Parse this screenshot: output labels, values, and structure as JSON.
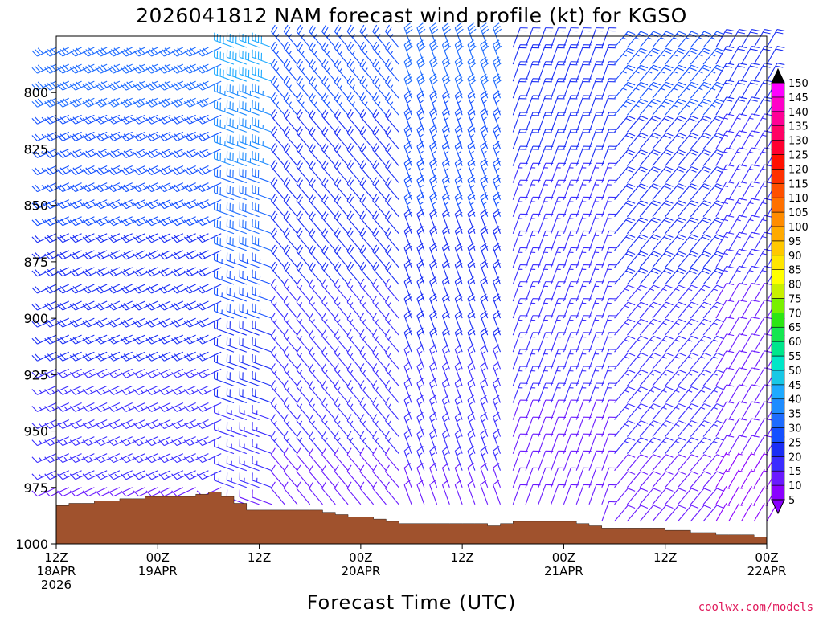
{
  "title": "2026041812 NAM forecast wind profile (kt) for KGSO",
  "xlabel": "Forecast Time (UTC)",
  "credit": "coolwx.com/models",
  "colors": {
    "ground": "#a0522d",
    "background": "#ffffff"
  },
  "chart_data": {
    "type": "wind_barbs",
    "units": "kt",
    "ylabel": "",
    "y_axis": {
      "ticks": [
        800,
        825,
        850,
        875,
        900,
        925,
        950,
        975,
        1000
      ],
      "range": [
        775,
        1000
      ],
      "inverted": true
    },
    "x_axis": {
      "range_hours": [
        0,
        84
      ],
      "ticks": [
        {
          "hour": 0,
          "lines": [
            "12Z",
            "18APR",
            "2026"
          ]
        },
        {
          "hour": 12,
          "lines": [
            "00Z",
            "19APR"
          ]
        },
        {
          "hour": 24,
          "lines": [
            "12Z"
          ]
        },
        {
          "hour": 36,
          "lines": [
            "00Z",
            "20APR"
          ]
        },
        {
          "hour": 48,
          "lines": [
            "12Z"
          ]
        },
        {
          "hour": 60,
          "lines": [
            "00Z",
            "21APR"
          ]
        },
        {
          "hour": 72,
          "lines": [
            "12Z"
          ]
        },
        {
          "hour": 84,
          "lines": [
            "00Z",
            "22APR"
          ]
        }
      ]
    },
    "colorbar": {
      "labels": [
        5,
        10,
        15,
        20,
        25,
        30,
        35,
        40,
        45,
        50,
        55,
        60,
        65,
        70,
        75,
        80,
        85,
        90,
        95,
        100,
        105,
        110,
        115,
        120,
        125,
        130,
        135,
        140,
        145,
        150
      ],
      "colors": [
        "#8a00ff",
        "#6a1aff",
        "#3a2cff",
        "#1a2ef5",
        "#1450ff",
        "#1e6cff",
        "#1e8cff",
        "#1eaaff",
        "#18c8e6",
        "#00e6c8",
        "#00e68c",
        "#14e650",
        "#2ce614",
        "#78f000",
        "#c8f000",
        "#ffff00",
        "#ffe600",
        "#ffc800",
        "#ffaa00",
        "#ff8c00",
        "#ff7000",
        "#ff5000",
        "#ff3000",
        "#ff1000",
        "#ff0030",
        "#ff0064",
        "#ff0096",
        "#ff00c8",
        "#ff00ff"
      ]
    },
    "surface_pressure": {
      "hours": [
        0,
        1.5,
        3,
        4.5,
        6,
        7.5,
        9,
        10.5,
        12,
        13.5,
        15,
        16.5,
        18,
        19.5,
        21,
        22.5,
        24,
        25.5,
        27,
        28.5,
        30,
        31.5,
        33,
        34.5,
        36,
        37.5,
        39,
        40.5,
        42,
        43.5,
        45,
        46.5,
        48,
        49.5,
        51,
        52.5,
        54,
        55.5,
        57,
        58.5,
        60,
        61.5,
        63,
        64.5,
        66,
        67.5,
        69,
        70.5,
        72,
        73.5,
        75,
        76.5,
        78,
        79.5,
        81,
        82.5,
        84
      ],
      "values": [
        983,
        982,
        982,
        981,
        981,
        980,
        980,
        979,
        979,
        979,
        979,
        978,
        977,
        979,
        982,
        985,
        985,
        985,
        985,
        985,
        985,
        986,
        987,
        988,
        988,
        989,
        990,
        991,
        991,
        991,
        991,
        991,
        991,
        991,
        992,
        991,
        990,
        990,
        990,
        990,
        990,
        991,
        992,
        993,
        993,
        993,
        993,
        993,
        994,
        994,
        995,
        995,
        996,
        996,
        996,
        997,
        994
      ]
    },
    "barb_rows_hpa": [
      780,
      787.5,
      795,
      802.5,
      810,
      817.5,
      825,
      832.5,
      840,
      847.5,
      855,
      862.5,
      870,
      877.5,
      885,
      892.5,
      900,
      907.5,
      915,
      922.5,
      930,
      937.5,
      945,
      952.5,
      960,
      967.5,
      975,
      982.5,
      990,
      997.5
    ],
    "segments": [
      {
        "from_hour": 0,
        "to_hour": 21,
        "direction_deg": 245,
        "speed_top_kt": 30,
        "speed_bottom_kt": 10
      },
      {
        "from_hour": 21,
        "to_hour": 27,
        "direction_deg": 290,
        "speed_top_kt": 40,
        "speed_bottom_kt": 10
      },
      {
        "from_hour": 27,
        "to_hour": 42,
        "direction_deg": 320,
        "speed_top_kt": 25,
        "speed_bottom_kt": 10
      },
      {
        "from_hour": 42,
        "to_hour": 54,
        "direction_deg": 340,
        "speed_top_kt": 30,
        "speed_bottom_kt": 10
      },
      {
        "from_hour": 54,
        "to_hour": 66,
        "direction_deg": 20,
        "speed_top_kt": 20,
        "speed_bottom_kt": 10
      },
      {
        "from_hour": 66,
        "to_hour": 78,
        "direction_deg": 40,
        "speed_top_kt": 25,
        "speed_bottom_kt": 10
      },
      {
        "from_hour": 78,
        "to_hour": 84,
        "direction_deg": 30,
        "speed_top_kt": 20,
        "speed_bottom_kt": 5
      }
    ]
  }
}
